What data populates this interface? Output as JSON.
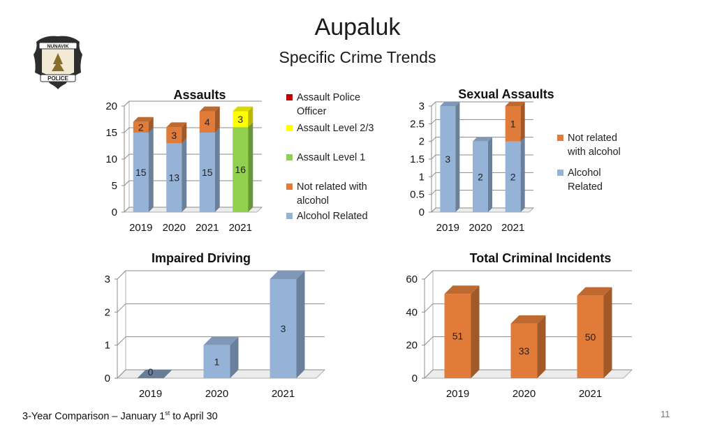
{
  "slide": {
    "title": "Aupaluk",
    "subtitle": "Specific Crime Trends",
    "footer_before": "3-Year Comparison – January 1",
    "footer_sup": "st",
    "footer_after": " to April 30",
    "page_number": "11"
  },
  "logo": {
    "top_text": "NUNAVIK",
    "bottom_text": "POLICE",
    "icon": "police-badge-icon",
    "colors": {
      "band": "#2e2e2e",
      "inner": "#f3ead6",
      "accent": "#8a6d2b"
    }
  },
  "colors": {
    "alcohol_related": "#95b3d7",
    "not_related_alcohol": "#e07b39",
    "assault_level_1": "#92d050",
    "assault_level_23": "#ffff00",
    "assault_police_officer": "#c00000"
  },
  "chart_data": [
    {
      "id": "assaults",
      "type": "bar",
      "stacked": true,
      "title": "Assaults",
      "categories": [
        "2019",
        "2020",
        "2021",
        "2021"
      ],
      "ylim": [
        0,
        20
      ],
      "yticks": [
        "0",
        "5",
        "10",
        "15",
        "20"
      ],
      "grid": true,
      "legend_position": "right",
      "legend": [
        "Assault Police Officer",
        "Assault Level 2/3",
        "Assault Level 1",
        "Not related with alcohol",
        "Alcohol Related"
      ],
      "series": [
        {
          "name": "Alcohol Related",
          "color": "#95b3d7",
          "values": [
            15,
            13,
            15,
            0
          ],
          "labels": [
            "15",
            "13",
            "15",
            ""
          ]
        },
        {
          "name": "Not related with alcohol",
          "color": "#e07b39",
          "values": [
            2,
            3,
            4,
            0
          ],
          "labels": [
            "2",
            "3",
            "4",
            ""
          ]
        },
        {
          "name": "Assault Level 1",
          "color": "#92d050",
          "values": [
            0,
            0,
            0,
            16
          ],
          "labels": [
            "",
            "",
            "",
            "16"
          ]
        },
        {
          "name": "Assault Level 2/3",
          "color": "#ffff00",
          "values": [
            0,
            0,
            0,
            3
          ],
          "labels": [
            "",
            "",
            "",
            "3"
          ]
        },
        {
          "name": "Assault Police Officer",
          "color": "#c00000",
          "values": [
            0,
            0,
            0,
            0
          ],
          "labels": [
            "",
            "",
            "",
            ""
          ]
        }
      ]
    },
    {
      "id": "sexual-assaults",
      "type": "bar",
      "stacked": true,
      "title": "Sexual Assaults",
      "categories": [
        "2019",
        "2020",
        "2021"
      ],
      "ylim": [
        0,
        3
      ],
      "yticks": [
        "0",
        "0.5",
        "1",
        "1.5",
        "2",
        "2.5",
        "3"
      ],
      "grid": true,
      "legend_position": "right",
      "legend": [
        "Not related with alcohol",
        "Alcohol Related"
      ],
      "series": [
        {
          "name": "Alcohol Related",
          "color": "#95b3d7",
          "values": [
            3,
            2,
            2
          ],
          "labels": [
            "3",
            "2",
            "2"
          ]
        },
        {
          "name": "Not related with alcohol",
          "color": "#e07b39",
          "values": [
            0,
            0,
            1
          ],
          "labels": [
            "",
            "",
            "1"
          ]
        }
      ]
    },
    {
      "id": "impaired-driving",
      "type": "bar",
      "stacked": false,
      "title": "Impaired Driving",
      "categories": [
        "2019",
        "2020",
        "2021"
      ],
      "ylim": [
        0,
        3
      ],
      "yticks": [
        "0",
        "1",
        "2",
        "3"
      ],
      "grid": true,
      "series": [
        {
          "color": "#95b3d7",
          "values": [
            0,
            1,
            3
          ],
          "labels": [
            "0",
            "1",
            "3"
          ]
        }
      ]
    },
    {
      "id": "total-criminal-incidents",
      "type": "bar",
      "stacked": false,
      "title": "Total Criminal Incidents",
      "categories": [
        "2019",
        "2020",
        "2021"
      ],
      "ylim": [
        0,
        60
      ],
      "yticks": [
        "0",
        "20",
        "40",
        "60"
      ],
      "grid": true,
      "series": [
        {
          "color": "#e07b39",
          "values": [
            51,
            33,
            50
          ],
          "labels": [
            "51",
            "33",
            "50"
          ]
        }
      ]
    }
  ]
}
